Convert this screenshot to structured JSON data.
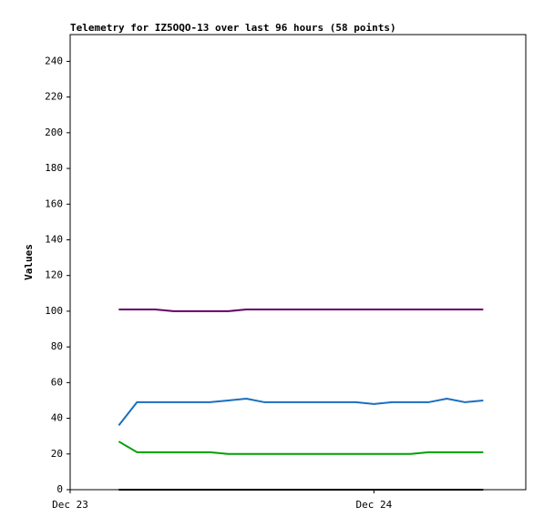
{
  "chart_data": {
    "type": "line",
    "title": "Telemetry for IZ5OQO-13 over last 96 hours (58 points)",
    "y_label": "Values",
    "x": [
      0.16,
      0.22,
      0.28,
      0.34,
      0.4,
      0.46,
      0.52,
      0.58,
      0.64,
      0.7,
      0.76,
      0.82,
      0.88,
      0.94,
      1.0,
      1.06,
      1.12,
      1.18,
      1.24,
      1.3,
      1.36
    ],
    "xlim": [
      0,
      1.5
    ],
    "xticks": [
      {
        "value": 0,
        "label": "Dec 23"
      },
      {
        "value": 1,
        "label": "Dec 24"
      }
    ],
    "ylim": [
      0,
      255
    ],
    "yticks": [
      0,
      20,
      40,
      60,
      80,
      100,
      120,
      140,
      160,
      180,
      200,
      220,
      240
    ],
    "grid": false,
    "series": [
      {
        "color": "#660066",
        "values": [
          101,
          101,
          101,
          100,
          100,
          100,
          100,
          101,
          101,
          101,
          101,
          101,
          101,
          101,
          101,
          101,
          101,
          101,
          101,
          101,
          101
        ]
      },
      {
        "color": "#1a6fc0",
        "values": [
          36,
          49,
          49,
          49,
          49,
          49,
          50,
          51,
          49,
          49,
          49,
          49,
          49,
          49,
          48,
          49,
          49,
          49,
          51,
          49,
          50
        ]
      },
      {
        "color": "#00a000",
        "values": [
          27,
          21,
          21,
          21,
          21,
          21,
          20,
          20,
          20,
          20,
          20,
          20,
          20,
          20,
          20,
          20,
          20,
          21,
          21,
          21,
          21
        ]
      },
      {
        "color": "#000000",
        "values": [
          0,
          0,
          0,
          0,
          0,
          0,
          0,
          0,
          0,
          0,
          0,
          0,
          0,
          0,
          0,
          0,
          0,
          0,
          0,
          0,
          0
        ]
      }
    ]
  }
}
